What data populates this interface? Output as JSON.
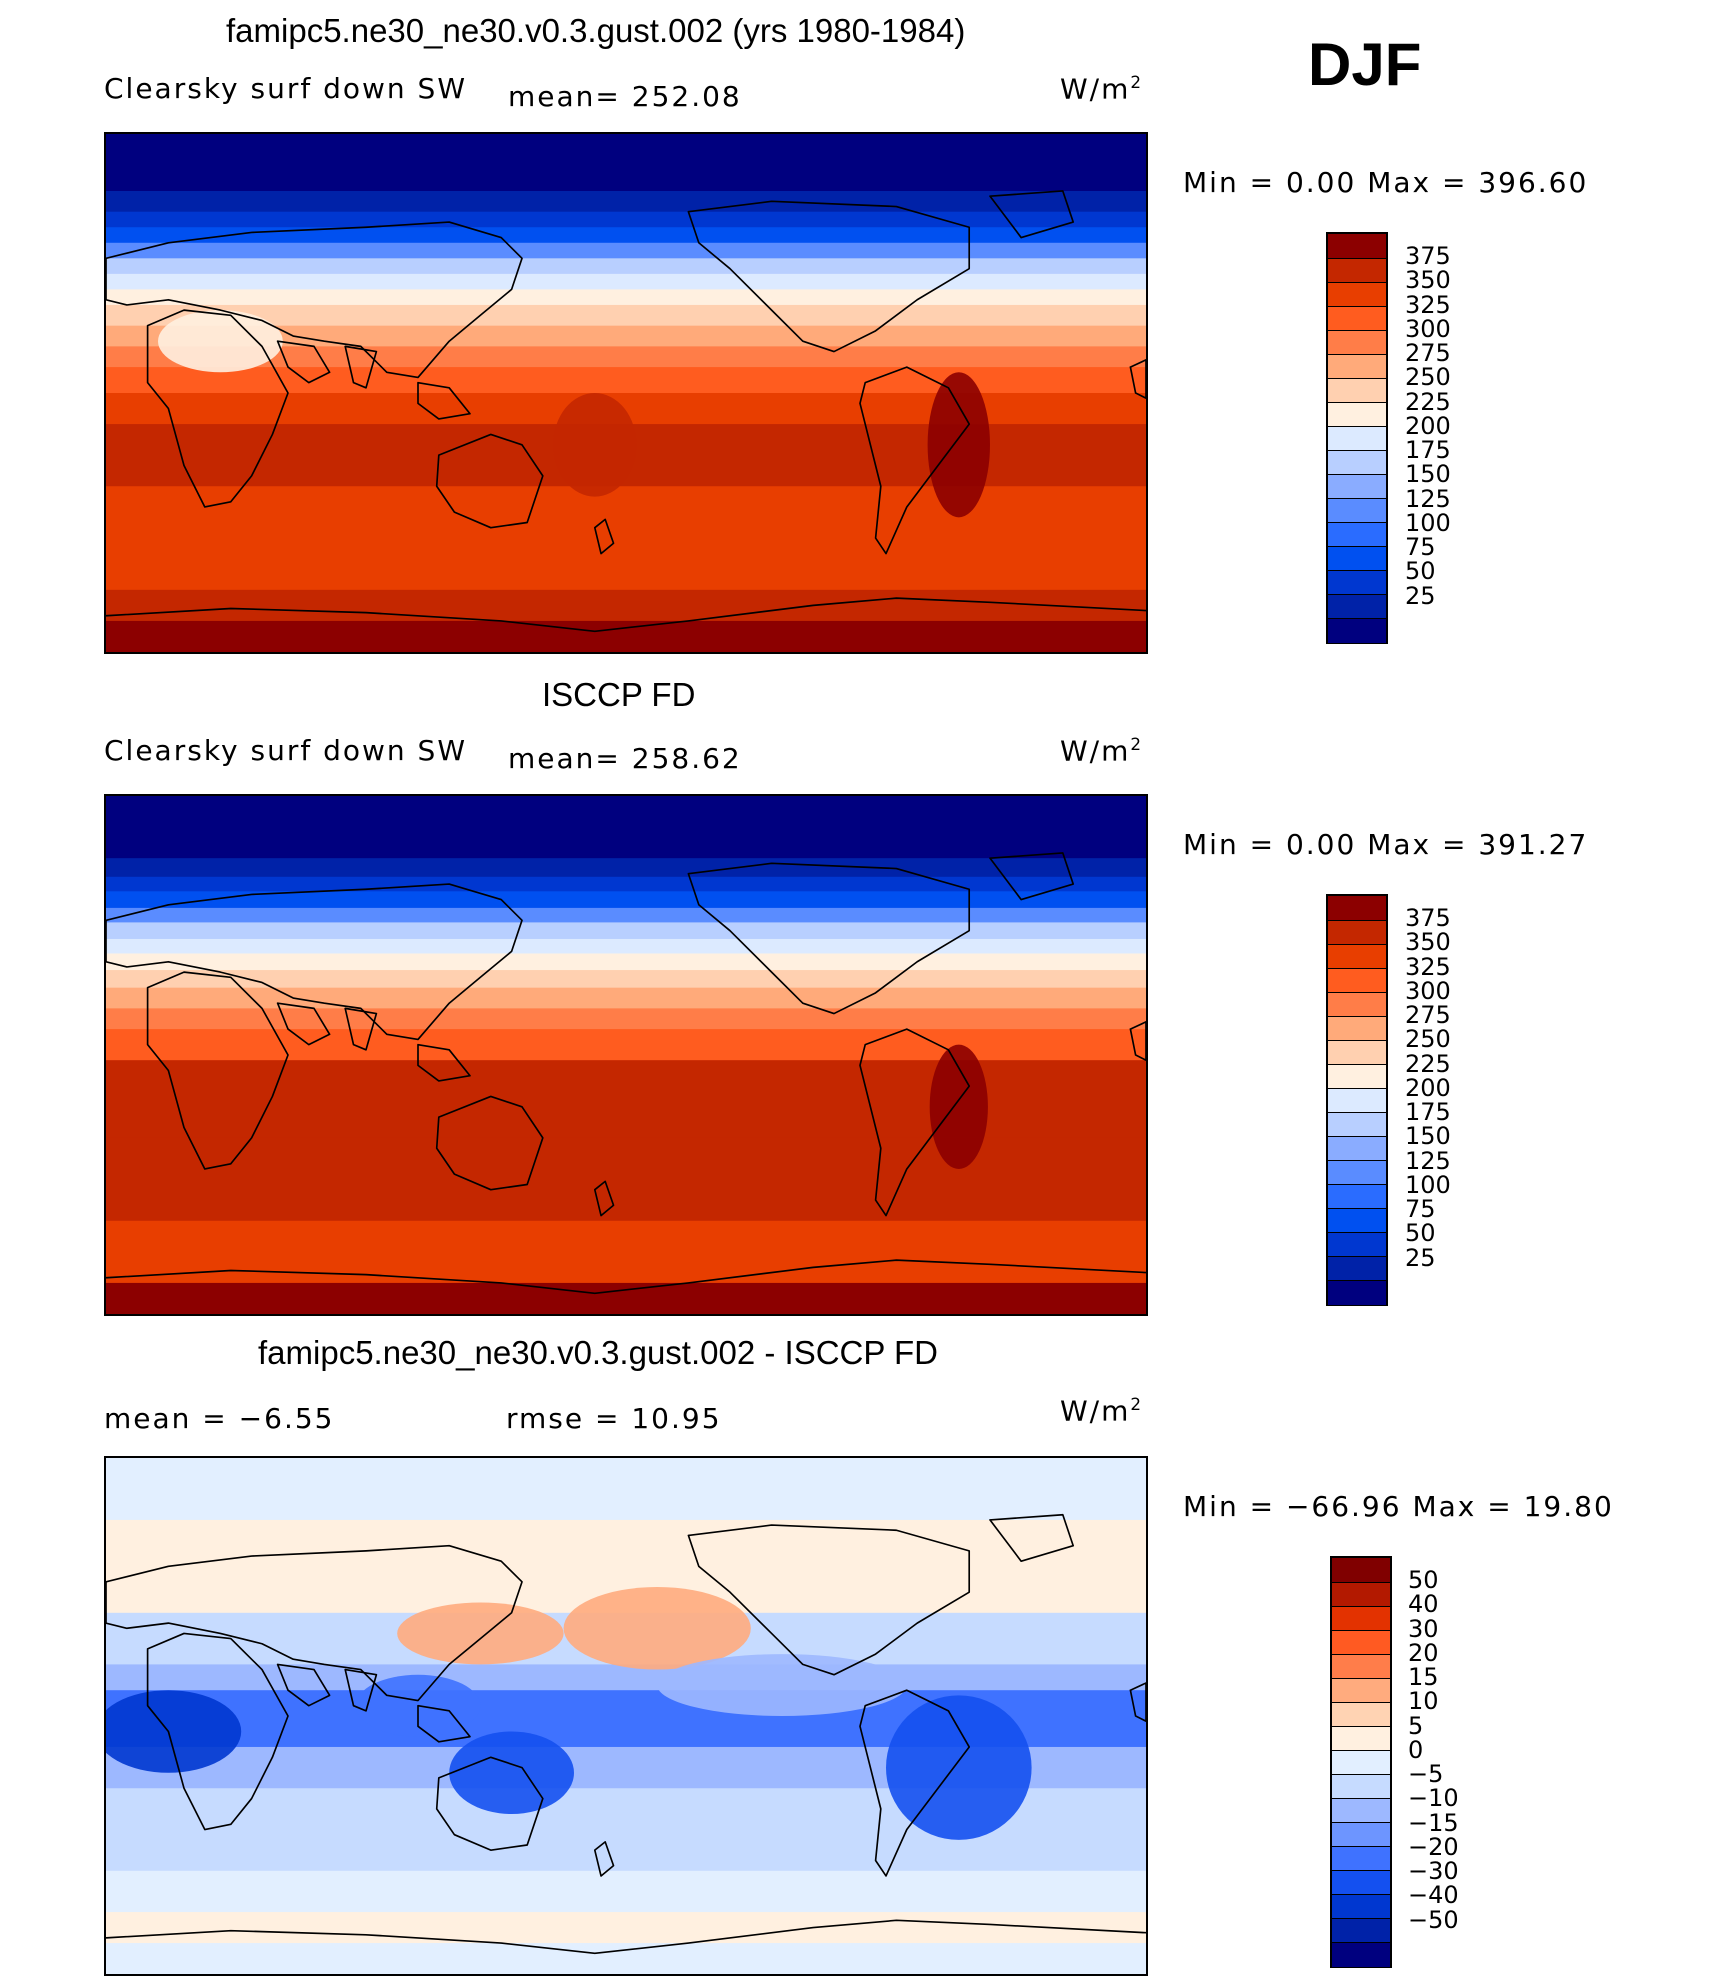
{
  "season": "DJF",
  "units": "W/m",
  "units_exp": "2",
  "colors": {
    "abs_scale": [
      "#00007f",
      "#0022a8",
      "#0037d0",
      "#0050f0",
      "#2a6cff",
      "#5a8cff",
      "#8aacff",
      "#b8cfff",
      "#dceaff",
      "#fff0e0",
      "#ffd0b0",
      "#ffaa7a",
      "#ff7d48",
      "#ff5c1f",
      "#e83e00",
      "#c42700",
      "#8c0000"
    ],
    "diff_scale": [
      "#00007f",
      "#0022a8",
      "#0037d0",
      "#1450f0",
      "#3f72ff",
      "#6d95ff",
      "#9db8ff",
      "#c6dbff",
      "#e2efff",
      "#fff0e0",
      "#ffd3b3",
      "#ffab7e",
      "#ff7d4a",
      "#ff5a22",
      "#e33200",
      "#b31900",
      "#800000"
    ]
  },
  "chart_data": [
    {
      "type": "heatmap",
      "title": "famipc5.ne30_ne30.v0.3.gust.002 (yrs 1980-1984)",
      "left_label": "Clearsky surf down SW",
      "mean_label": "mean= 252.08",
      "minmax_label": "Min =     0.00 Max  =  396.60",
      "min": 0.0,
      "max": 396.6,
      "levels": [
        "375",
        "350",
        "325",
        "300",
        "275",
        "250",
        "225",
        "200",
        "175",
        "150",
        "125",
        "100",
        "75",
        "50",
        "25"
      ]
    },
    {
      "type": "heatmap",
      "title": "ISCCP FD",
      "left_label": "Clearsky surf down SW",
      "mean_label": "mean= 258.62",
      "minmax_label": "Min =     0.00 Max  =  391.27",
      "min": 0.0,
      "max": 391.27,
      "levels": [
        "375",
        "350",
        "325",
        "300",
        "275",
        "250",
        "225",
        "200",
        "175",
        "150",
        "125",
        "100",
        "75",
        "50",
        "25"
      ]
    },
    {
      "type": "heatmap",
      "title": "famipc5.ne30_ne30.v0.3.gust.002 - ISCCP FD",
      "left_label": "mean =    −6.55",
      "mean_label": "rmse  =    10.95",
      "minmax_label": "Min  = −66.96 Max  =   19.80",
      "min": -66.96,
      "max": 19.8,
      "mean": -6.55,
      "rmse": 10.95,
      "levels": [
        "50",
        "40",
        "30",
        "20",
        "15",
        "10",
        "5",
        "0",
        "−5",
        "−10",
        "−15",
        "−20",
        "−30",
        "−40",
        "−50"
      ]
    }
  ]
}
